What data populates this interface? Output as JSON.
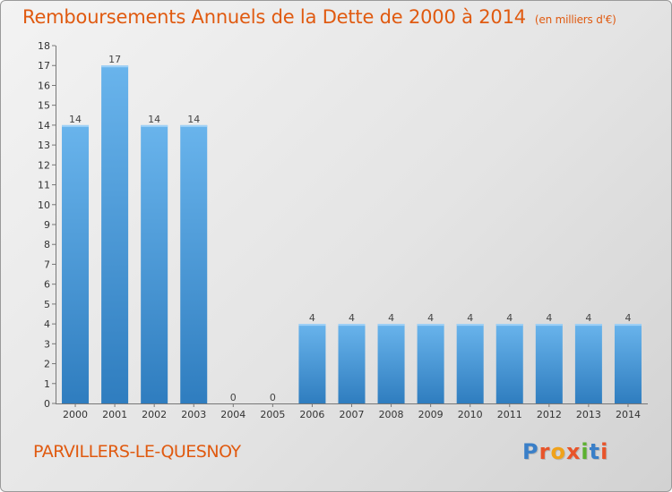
{
  "page": {
    "title": "Remboursements Annuels de la Dette de 2000 à 2014",
    "unit_note": "(en milliers d'€)",
    "commune": "PARVILLERS-LE-QUESNOY",
    "logo": {
      "letters": [
        "P",
        "r",
        "o",
        "x",
        "i",
        "t",
        "i"
      ],
      "colors": [
        "#3a7fc8",
        "#e8542a",
        "#f0a21a",
        "#e8542a",
        "#5cb030",
        "#3a7fc8",
        "#e8542a"
      ]
    }
  },
  "colors": {
    "bar_top": "#69b4ec",
    "bar_bottom": "#2f7dbf",
    "title": "#e05a10"
  },
  "chart_data": {
    "type": "bar",
    "title": "Remboursements Annuels de la Dette de 2000 à 2014",
    "ylabel": "en milliers d'€",
    "categories": [
      "2000",
      "2001",
      "2002",
      "2003",
      "2004",
      "2005",
      "2006",
      "2007",
      "2008",
      "2009",
      "2010",
      "2011",
      "2012",
      "2013",
      "2014"
    ],
    "values": [
      14,
      17,
      14,
      14,
      0,
      0,
      4,
      4,
      4,
      4,
      4,
      4,
      4,
      4,
      4
    ],
    "value_labels": [
      "14",
      "17",
      "14",
      "14",
      "0",
      "0",
      "4",
      "4",
      "4",
      "4",
      "4",
      "4",
      "4",
      "4",
      "4"
    ],
    "ylim": [
      0,
      18
    ],
    "yticks": [
      "0",
      "1",
      "2",
      "3",
      "4",
      "5",
      "6",
      "7",
      "8",
      "9",
      "10",
      "11",
      "12",
      "13",
      "14",
      "15",
      "16",
      "17",
      "18"
    ],
    "grid": false
  }
}
